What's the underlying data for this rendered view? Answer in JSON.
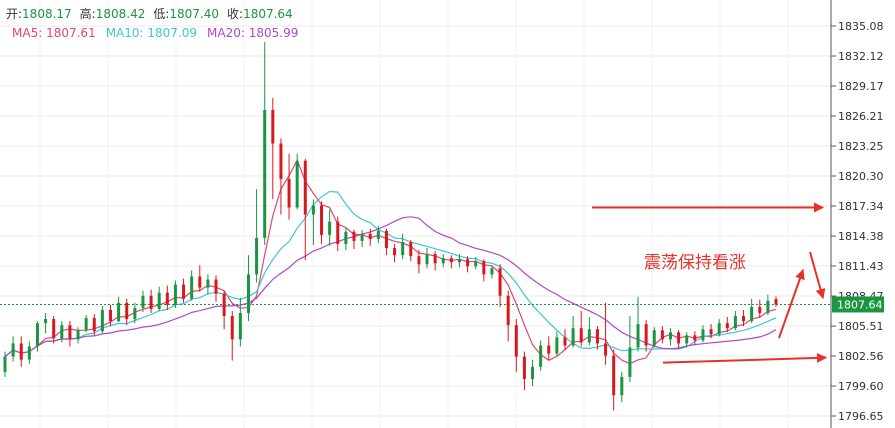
{
  "header": {
    "open_label": "开:",
    "open_value": "1808.17",
    "high_label": "高:",
    "high_value": "1808.42",
    "low_label": "低:",
    "low_value": "1807.40",
    "close_label": "收:",
    "close_value": "1807.64"
  },
  "ma_legend": {
    "ma5_label": "MA5:",
    "ma5_value": "1807.61",
    "ma10_label": "MA10:",
    "ma10_value": "1807.09",
    "ma20_label": "MA20:",
    "ma20_value": "1805.99"
  },
  "annotation": {
    "text": "震荡保持看涨"
  },
  "colors": {
    "up": "#1a9641",
    "down": "#d7191c",
    "ma5": "#e0457b",
    "ma10": "#40c4d8",
    "ma20": "#b048c8",
    "arrow": "#e8312a",
    "current_price": "#1a9641",
    "header_label": "#333333",
    "header_value": "#1a9641"
  },
  "chart_data": {
    "type": "candlestick",
    "title": "",
    "xlabel": "",
    "ylabel": "",
    "y_ticks": [
      "1835.08",
      "1832.12",
      "1829.17",
      "1826.21",
      "1823.25",
      "1820.30",
      "1817.34",
      "1814.38",
      "1811.43",
      "1808.47",
      "1805.51",
      "1802.56",
      "1799.60",
      "1796.65"
    ],
    "ylim": [
      1795.5,
      1836.5
    ],
    "current_price": {
      "label": "1807.64",
      "value": 1807.64
    },
    "grid": true,
    "resistance_level": 1817.2,
    "support_level": 1802.4,
    "series_ma": [
      {
        "name": "MA5",
        "color_key": "ma5"
      },
      {
        "name": "MA10",
        "color_key": "ma10"
      },
      {
        "name": "MA20",
        "color_key": "ma20"
      }
    ],
    "candles": [
      [
        1801,
        1802.5,
        1800.5,
        1803
      ],
      [
        1802.5,
        1803.8,
        1802,
        1804.5
      ],
      [
        1803.8,
        1802.2,
        1801.5,
        1804.5
      ],
      [
        1802.2,
        1803.5,
        1801.8,
        1804
      ],
      [
        1803.5,
        1805.8,
        1803,
        1806
      ],
      [
        1805.8,
        1806.2,
        1804.8,
        1806.8
      ],
      [
        1806.2,
        1804.3,
        1803.8,
        1806.5
      ],
      [
        1804.3,
        1805.6,
        1803.9,
        1806
      ],
      [
        1805.6,
        1804.2,
        1803.5,
        1806
      ],
      [
        1804.2,
        1805.1,
        1803.8,
        1805.4
      ],
      [
        1805.1,
        1806.3,
        1804.9,
        1806.6
      ],
      [
        1806.3,
        1805,
        1804.6,
        1806.7
      ],
      [
        1805,
        1807.1,
        1804.8,
        1807.5
      ],
      [
        1807.1,
        1806,
        1805.5,
        1807.6
      ],
      [
        1806,
        1807.8,
        1805.9,
        1808.4
      ],
      [
        1807.8,
        1806.2,
        1805.6,
        1808.2
      ],
      [
        1806.2,
        1807.3,
        1805.8,
        1807.8
      ],
      [
        1807.3,
        1808.5,
        1806.9,
        1809
      ],
      [
        1808.5,
        1807.2,
        1806.8,
        1809.1
      ],
      [
        1807.2,
        1808.8,
        1807,
        1809.4
      ],
      [
        1808.8,
        1807.6,
        1807.1,
        1809.5
      ],
      [
        1807.6,
        1809.6,
        1807.3,
        1810
      ],
      [
        1809.6,
        1808.2,
        1807.8,
        1810.2
      ],
      [
        1808.2,
        1810.4,
        1808,
        1811
      ],
      [
        1810.4,
        1809.3,
        1808.9,
        1811.5
      ],
      [
        1809.3,
        1810.1,
        1808.6,
        1810.6
      ],
      [
        1810.1,
        1808.7,
        1807.9,
        1810.5
      ],
      [
        1808.7,
        1806.5,
        1805.2,
        1809
      ],
      [
        1806.5,
        1804.2,
        1802.1,
        1807
      ],
      [
        1804.2,
        1806.8,
        1803.5,
        1808.3
      ],
      [
        1806.8,
        1810.6,
        1806,
        1812.5
      ],
      [
        1810.6,
        1814.2,
        1809.8,
        1819
      ],
      [
        1814.2,
        1826.8,
        1813.5,
        1833.5
      ],
      [
        1826.8,
        1823.5,
        1818,
        1828
      ],
      [
        1823.5,
        1820,
        1816.5,
        1824
      ],
      [
        1820,
        1817.2,
        1816,
        1822.5
      ],
      [
        1817.2,
        1821.8,
        1817,
        1822.5
      ],
      [
        1821.8,
        1816.5,
        1812,
        1822
      ],
      [
        1816.5,
        1817.4,
        1813.5,
        1818
      ],
      [
        1817.4,
        1814.5,
        1813.6,
        1817.8
      ],
      [
        1814.5,
        1815.8,
        1813.4,
        1817
      ],
      [
        1815.8,
        1813.6,
        1812.9,
        1816.3
      ],
      [
        1813.6,
        1814.8,
        1813,
        1815.2
      ],
      [
        1814.8,
        1813.9,
        1813.1,
        1815
      ],
      [
        1813.9,
        1814.6,
        1813.3,
        1815
      ],
      [
        1814.6,
        1814.1,
        1813.4,
        1815.1
      ],
      [
        1814.1,
        1814.9,
        1813.7,
        1815.4
      ],
      [
        1814.9,
        1813.2,
        1812.5,
        1815.1
      ],
      [
        1813.2,
        1812.5,
        1811.8,
        1813.6
      ],
      [
        1812.5,
        1813.8,
        1812.1,
        1814.6
      ],
      [
        1813.8,
        1812.4,
        1811.9,
        1814
      ],
      [
        1812.4,
        1811.6,
        1810.7,
        1813
      ],
      [
        1811.6,
        1812.6,
        1811.2,
        1813.2
      ],
      [
        1812.6,
        1811.7,
        1811,
        1812.9
      ],
      [
        1811.7,
        1812.2,
        1811.3,
        1812.6
      ],
      [
        1812.2,
        1811.8,
        1811.2,
        1812.5
      ],
      [
        1811.8,
        1812.1,
        1811.3,
        1812.6
      ],
      [
        1812.1,
        1811.4,
        1810.8,
        1812.4
      ],
      [
        1811.4,
        1811.9,
        1811.1,
        1812.3
      ],
      [
        1811.9,
        1810.6,
        1809.9,
        1812.1
      ],
      [
        1810.6,
        1811.2,
        1810.2,
        1811.5
      ],
      [
        1811.2,
        1808.5,
        1807.4,
        1811.6
      ],
      [
        1808.5,
        1805.6,
        1804,
        1809
      ],
      [
        1805.6,
        1802.5,
        1801,
        1806.2
      ],
      [
        1802.5,
        1800.3,
        1799.2,
        1803
      ],
      [
        1800.3,
        1801.5,
        1799.6,
        1802.2
      ],
      [
        1801.5,
        1803.6,
        1801.1,
        1804.1
      ],
      [
        1803.6,
        1802.8,
        1802.2,
        1804.5
      ],
      [
        1802.8,
        1804.4,
        1802.5,
        1805
      ],
      [
        1804.4,
        1803.6,
        1803.1,
        1805.2
      ],
      [
        1803.6,
        1805.3,
        1803.4,
        1806.5
      ],
      [
        1805.3,
        1803.9,
        1803.5,
        1807
      ],
      [
        1803.9,
        1805.2,
        1803.6,
        1806.4
      ],
      [
        1805.2,
        1803.8,
        1803.2,
        1805.5
      ],
      [
        1803.8,
        1802.6,
        1801.7,
        1807.8
      ],
      [
        1802.6,
        1798.7,
        1797.2,
        1803.2
      ],
      [
        1798.7,
        1800.5,
        1798,
        1801
      ],
      [
        1800.5,
        1803.4,
        1800,
        1806.5
      ],
      [
        1803.4,
        1805.7,
        1803,
        1808.4
      ],
      [
        1805.7,
        1803.6,
        1803,
        1806.1
      ],
      [
        1803.6,
        1805.1,
        1803.4,
        1805.4
      ],
      [
        1805.1,
        1804.2,
        1803.8,
        1805.5
      ],
      [
        1804.2,
        1804.9,
        1803.6,
        1805.3
      ],
      [
        1804.9,
        1803.8,
        1803.3,
        1805.1
      ],
      [
        1803.8,
        1804.6,
        1803.5,
        1804.9
      ],
      [
        1804.6,
        1804.1,
        1803.7,
        1805
      ],
      [
        1804.1,
        1805.2,
        1803.9,
        1805.6
      ],
      [
        1805.2,
        1804.7,
        1804.3,
        1805.7
      ],
      [
        1804.7,
        1805.8,
        1804.5,
        1806.2
      ],
      [
        1805.8,
        1805.3,
        1804.9,
        1806.4
      ],
      [
        1805.3,
        1806.5,
        1805.1,
        1807
      ],
      [
        1806.5,
        1806,
        1805.5,
        1807.1
      ],
      [
        1806,
        1807.4,
        1805.8,
        1808.2
      ],
      [
        1807.4,
        1806.8,
        1806.3,
        1808.1
      ],
      [
        1806.8,
        1808,
        1806.6,
        1808.6
      ],
      [
        1808.17,
        1807.64,
        1807.4,
        1808.42
      ]
    ]
  }
}
